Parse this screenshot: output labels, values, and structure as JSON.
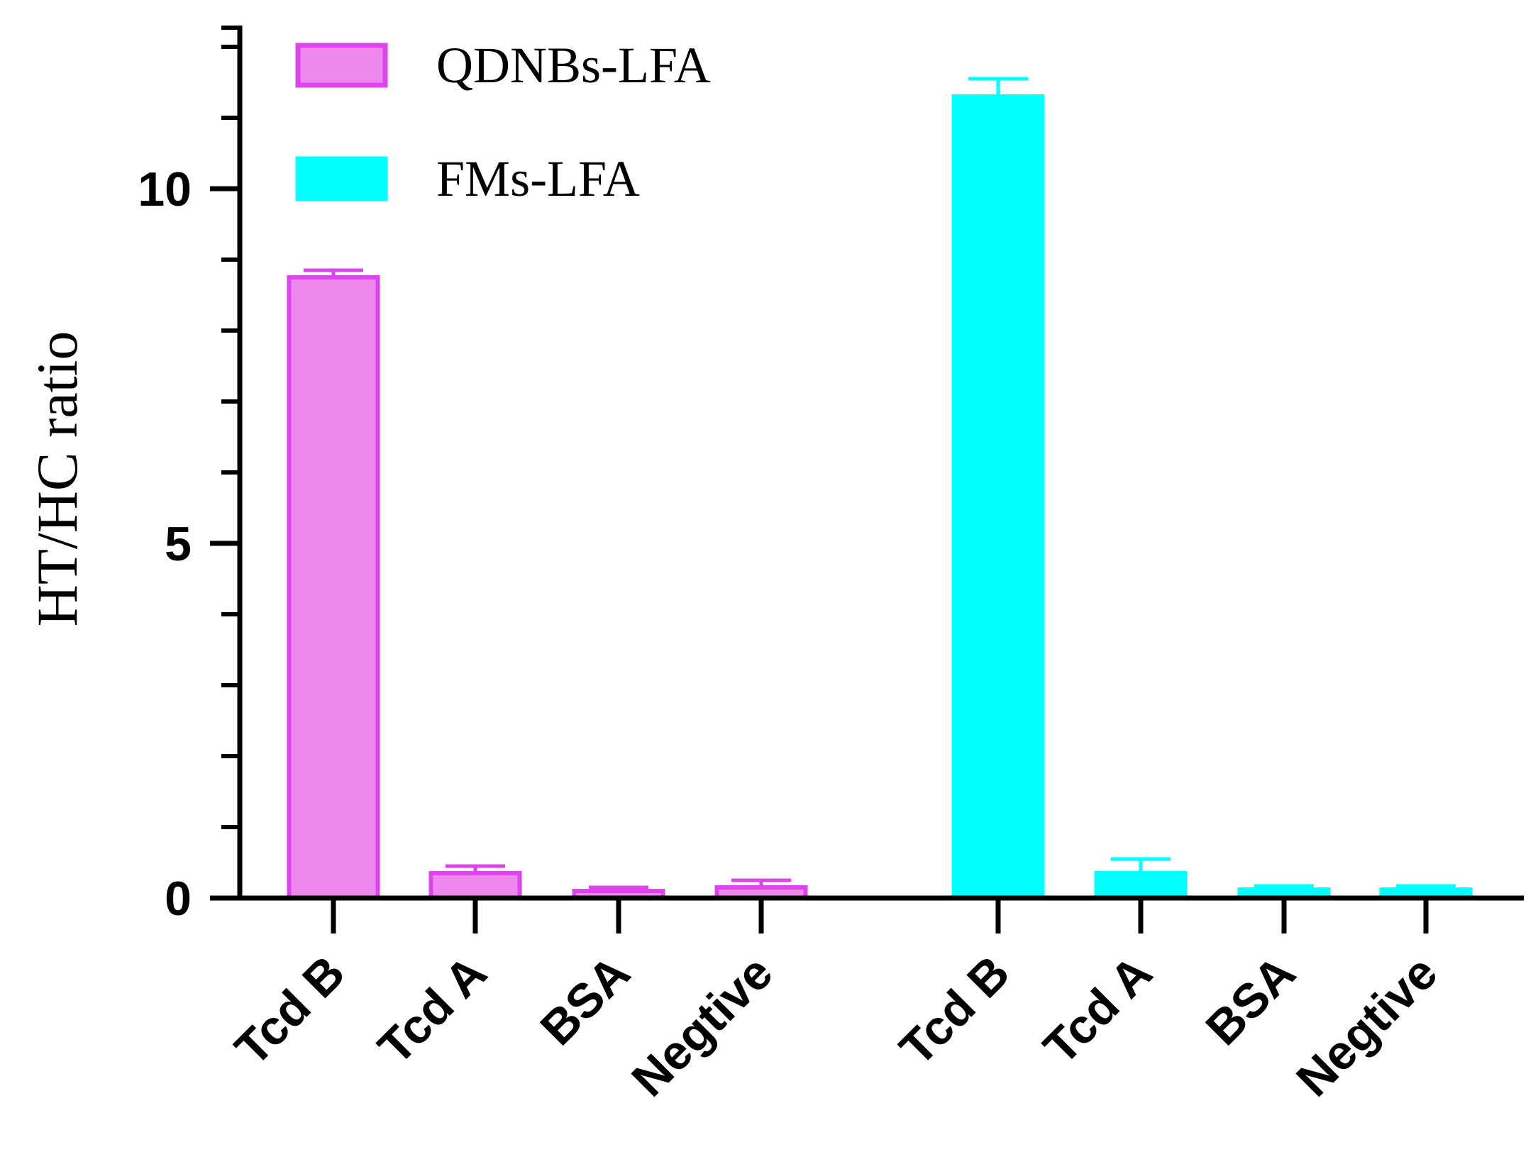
{
  "chart_data": {
    "type": "bar",
    "ylabel": "HT/HC ratio",
    "ylim": [
      0,
      12
    ],
    "y_ticks": [
      0,
      5,
      10
    ],
    "y_minor_step": 1,
    "grid": false,
    "legend_position": "top-left",
    "groups": [
      {
        "series": "QDNBs-LFA",
        "categories": [
          "Tcd B",
          "Tcd A",
          "BSA",
          "Negtive"
        ]
      },
      {
        "series": "FMs-LFA",
        "categories": [
          "Tcd B",
          "Tcd A",
          "BSA",
          "Negtive"
        ]
      }
    ],
    "series": [
      {
        "name": "QDNBs-LFA",
        "values": [
          8.75,
          0.35,
          0.1,
          0.15
        ],
        "errors": [
          0.1,
          0.1,
          0.05,
          0.1
        ],
        "fill": "#ee88ee",
        "stroke": "#dd44ee"
      },
      {
        "name": "FMs-LFA",
        "values": [
          11.3,
          0.35,
          0.12,
          0.12
        ],
        "errors": [
          0.25,
          0.2,
          0.05,
          0.05
        ],
        "fill": "#00ffff",
        "stroke": "#00ffff"
      }
    ]
  }
}
